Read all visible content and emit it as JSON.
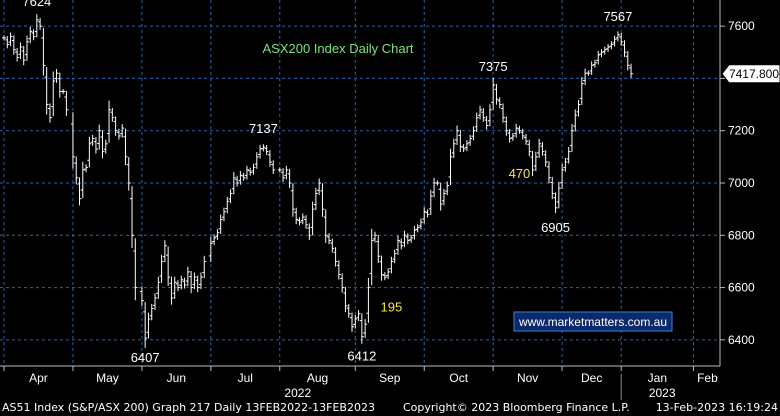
{
  "chart_data": {
    "type": "ohlc",
    "title": "ASX200 Index Daily Chart",
    "watermark": "www.marketmatters.com.au",
    "price_label": "7417.800",
    "ylim": [
      6300,
      7700
    ],
    "y_ticks": [
      6400,
      6600,
      6800,
      7000,
      7200,
      7400,
      7600
    ],
    "months": [
      {
        "label": "Apr",
        "x": 0
      },
      {
        "label": "May",
        "x": 21
      },
      {
        "label": "Jun",
        "x": 42
      },
      {
        "label": "Jul",
        "x": 63
      },
      {
        "label": "Aug",
        "x": 84
      },
      {
        "label": "Sep",
        "x": 107
      },
      {
        "label": "Oct",
        "x": 128
      },
      {
        "label": "Nov",
        "x": 149
      },
      {
        "label": "Dec",
        "x": 170
      },
      {
        "label": "Jan",
        "x": 188
      },
      {
        "label": "Feb",
        "x": 210
      }
    ],
    "years": [
      {
        "label": "2022",
        "x": 84
      },
      {
        "label": "2023",
        "x": 195
      }
    ],
    "series": [
      {
        "values": [
          [
            0,
            7555
          ],
          [
            1,
            7530
          ],
          [
            2,
            7560
          ],
          [
            3,
            7510
          ],
          [
            4,
            7480
          ],
          [
            5,
            7520
          ],
          [
            6,
            7470
          ],
          [
            7,
            7540
          ],
          [
            8,
            7580
          ],
          [
            9,
            7560
          ],
          [
            10,
            7624
          ],
          [
            11,
            7600
          ],
          [
            12,
            7450
          ],
          [
            13,
            7300
          ],
          [
            14,
            7250
          ],
          [
            15,
            7390
          ],
          [
            16,
            7420
          ],
          [
            17,
            7350
          ],
          [
            18,
            7350
          ],
          [
            19,
            7280
          ],
          [
            21,
            7100
          ],
          [
            22,
            7020
          ],
          [
            23,
            6940
          ],
          [
            24,
            7050
          ],
          [
            25,
            7060
          ],
          [
            26,
            7150
          ],
          [
            27,
            7170
          ],
          [
            28,
            7130
          ],
          [
            29,
            7200
          ],
          [
            30,
            7120
          ],
          [
            31,
            7150
          ],
          [
            32,
            7280
          ],
          [
            33,
            7250
          ],
          [
            34,
            7200
          ],
          [
            35,
            7180
          ],
          [
            36,
            7210
          ],
          [
            37,
            7100
          ],
          [
            38,
            7000
          ],
          [
            39,
            6800
          ],
          [
            40,
            6600
          ],
          [
            42,
            6550
          ],
          [
            43,
            6407
          ],
          [
            44,
            6480
          ],
          [
            45,
            6520
          ],
          [
            46,
            6560
          ],
          [
            47,
            6620
          ],
          [
            48,
            6700
          ],
          [
            49,
            6760
          ],
          [
            50,
            6640
          ],
          [
            51,
            6560
          ],
          [
            52,
            6620
          ],
          [
            53,
            6600
          ],
          [
            54,
            6630
          ],
          [
            55,
            6610
          ],
          [
            56,
            6660
          ],
          [
            57,
            6600
          ],
          [
            58,
            6640
          ],
          [
            59,
            6600
          ],
          [
            60,
            6640
          ],
          [
            61,
            6700
          ],
          [
            63,
            6770
          ],
          [
            64,
            6790
          ],
          [
            65,
            6810
          ],
          [
            66,
            6860
          ],
          [
            67,
            6890
          ],
          [
            68,
            6930
          ],
          [
            69,
            6960
          ],
          [
            70,
            7020
          ],
          [
            71,
            7000
          ],
          [
            72,
            7030
          ],
          [
            73,
            7020
          ],
          [
            74,
            7050
          ],
          [
            75,
            7040
          ],
          [
            76,
            7060
          ],
          [
            77,
            7100
          ],
          [
            78,
            7130
          ],
          [
            79,
            7137
          ],
          [
            80,
            7120
          ],
          [
            81,
            7080
          ],
          [
            82,
            7050
          ],
          [
            84,
            7050
          ],
          [
            85,
            7020
          ],
          [
            86,
            7050
          ],
          [
            87,
            7000
          ],
          [
            88,
            6900
          ],
          [
            89,
            6860
          ],
          [
            90,
            6850
          ],
          [
            91,
            6870
          ],
          [
            92,
            6840
          ],
          [
            93,
            6800
          ],
          [
            94,
            6900
          ],
          [
            95,
            6960
          ],
          [
            96,
            7000
          ],
          [
            97,
            6900
          ],
          [
            98,
            6800
          ],
          [
            99,
            6780
          ],
          [
            100,
            6750
          ],
          [
            101,
            6700
          ],
          [
            102,
            6650
          ],
          [
            103,
            6600
          ],
          [
            104,
            6530
          ],
          [
            105,
            6500
          ],
          [
            106,
            6450
          ],
          [
            107,
            6480
          ],
          [
            108,
            6500
          ],
          [
            109,
            6412
          ],
          [
            110,
            6460
          ],
          [
            111,
            6600
          ],
          [
            112,
            6780
          ],
          [
            113,
            6800
          ],
          [
            114,
            6720
          ],
          [
            115,
            6650
          ],
          [
            116,
            6640
          ],
          [
            117,
            6660
          ],
          [
            118,
            6700
          ],
          [
            119,
            6730
          ],
          [
            120,
            6780
          ],
          [
            121,
            6760
          ],
          [
            122,
            6800
          ],
          [
            123,
            6780
          ],
          [
            124,
            6790
          ],
          [
            125,
            6820
          ],
          [
            126,
            6830
          ],
          [
            127,
            6850
          ],
          [
            128,
            6890
          ],
          [
            129,
            6880
          ],
          [
            130,
            6950
          ],
          [
            131,
            7000
          ],
          [
            132,
            7000
          ],
          [
            133,
            6920
          ],
          [
            134,
            6960
          ],
          [
            135,
            6990
          ],
          [
            136,
            7100
          ],
          [
            137,
            7150
          ],
          [
            138,
            7200
          ],
          [
            139,
            7140
          ],
          [
            140,
            7130
          ],
          [
            141,
            7150
          ],
          [
            142,
            7170
          ],
          [
            143,
            7200
          ],
          [
            144,
            7250
          ],
          [
            145,
            7280
          ],
          [
            146,
            7250
          ],
          [
            147,
            7220
          ],
          [
            148,
            7280
          ],
          [
            149,
            7375
          ],
          [
            150,
            7320
          ],
          [
            151,
            7300
          ],
          [
            152,
            7250
          ],
          [
            153,
            7200
          ],
          [
            154,
            7170
          ],
          [
            155,
            7180
          ],
          [
            156,
            7210
          ],
          [
            157,
            7200
          ],
          [
            158,
            7180
          ],
          [
            159,
            7160
          ],
          [
            160,
            7120
          ],
          [
            161,
            7050
          ],
          [
            162,
            7100
          ],
          [
            163,
            7150
          ],
          [
            164,
            7120
          ],
          [
            165,
            7080
          ],
          [
            166,
            7020
          ],
          [
            167,
            6960
          ],
          [
            168,
            6905
          ],
          [
            169,
            6980
          ],
          [
            170,
            7050
          ],
          [
            171,
            7080
          ],
          [
            172,
            7120
          ],
          [
            173,
            7200
          ],
          [
            174,
            7260
          ],
          [
            175,
            7300
          ],
          [
            176,
            7380
          ],
          [
            177,
            7420
          ],
          [
            178,
            7420
          ],
          [
            179,
            7450
          ],
          [
            180,
            7460
          ],
          [
            181,
            7490
          ],
          [
            182,
            7500
          ],
          [
            183,
            7510
          ],
          [
            184,
            7520
          ],
          [
            185,
            7530
          ],
          [
            186,
            7550
          ],
          [
            187,
            7567
          ],
          [
            188,
            7540
          ],
          [
            189,
            7500
          ],
          [
            190,
            7450
          ],
          [
            191,
            7417.8
          ]
        ]
      }
    ],
    "annotations": [
      {
        "text": "7624",
        "x": 10,
        "y": 7624,
        "color": "#ffffff",
        "pos": "above"
      },
      {
        "text": "6407",
        "x": 43,
        "y": 6407,
        "color": "#ffffff",
        "pos": "below"
      },
      {
        "text": "7137",
        "x": 79,
        "y": 7137,
        "color": "#ffffff",
        "pos": "above"
      },
      {
        "text": "6412",
        "x": 109,
        "y": 6412,
        "color": "#ffffff",
        "pos": "below"
      },
      {
        "text": "195",
        "x": 118,
        "y": 6600,
        "color": "#f5e64a",
        "pos": "below"
      },
      {
        "text": "7375",
        "x": 149,
        "y": 7375,
        "color": "#ffffff",
        "pos": "above"
      },
      {
        "text": "470",
        "x": 157,
        "y": 7110,
        "color": "#f5e64a",
        "pos": "below"
      },
      {
        "text": "6905",
        "x": 168,
        "y": 6905,
        "color": "#ffffff",
        "pos": "below"
      },
      {
        "text": "7567",
        "x": 187,
        "y": 7567,
        "color": "#ffffff",
        "pos": "above"
      }
    ],
    "colors": {
      "background": "#000000",
      "bars": "#ffffff",
      "grid": "#2c62a8",
      "title": "#7be37b",
      "highlight": "#f5e64a",
      "watermark_text": "#ffffff",
      "watermark_border": "#3f7fd6",
      "watermark_bg": "#0a2a6b"
    },
    "grid": true
  },
  "footer": {
    "left": "AS51 Index (S&P/ASX 200)  Graph 217  Daily 13FEB2022-13FEB2023",
    "center": "Copyright© 2023 Bloomberg Finance L.P.",
    "right": "13-Feb-2023 16:19:24"
  }
}
